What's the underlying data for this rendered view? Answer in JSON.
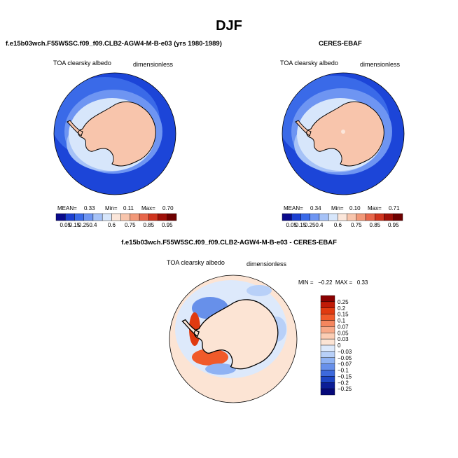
{
  "title": "DJF",
  "panels": [
    {
      "title": "f.e15b03wch.F55W5SC.f09_f09.CLB2-AGW4-M-B-e03 (yrs 1980-1989)",
      "variable": "TOA clearsky albedo",
      "units": "dimensionless",
      "stats": {
        "mean_label": "MEAN=",
        "mean": "0.33",
        "min_label": "Min=",
        "min": "0.11",
        "max_label": "Max=",
        "max": "0.70"
      }
    },
    {
      "title": "CERES-EBAF",
      "variable": "TOA clearsky albedo",
      "units": "dimensionless",
      "stats": {
        "mean_label": "MEAN=",
        "mean": "0.34",
        "min_label": "Min=",
        "min": "0.10",
        "max_label": "Max=",
        "max": "0.71"
      }
    },
    {
      "title": "f.e15b03wch.F55W5SC.f09_f09.CLB2-AGW4-M-B-e03 - CERES-EBAF",
      "variable": "TOA clearsky albedo",
      "units": "dimensionless",
      "stats_text": "MIN =   −0.22  MAX =   0.33"
    }
  ],
  "colorbar_abs": {
    "ticks": [
      "0.05",
      "0.15",
      "0.25",
      "0.4",
      "0.6",
      "0.75",
      "0.85",
      "0.95"
    ],
    "colors": [
      "#0a0a8c",
      "#1c3fd1",
      "#3a6ae8",
      "#6e95f2",
      "#a6c2f7",
      "#d7e6fb",
      "#fbe6da",
      "#f8c5ac",
      "#f29878",
      "#e8664a",
      "#d0341e",
      "#a01008",
      "#6e0000"
    ]
  },
  "colorbar_diff": {
    "ticks": [
      "0.25",
      "0.2",
      "0.15",
      "0.1",
      "0.07",
      "0.05",
      "0.03",
      "0",
      "−0.03",
      "−0.05",
      "−0.07",
      "−0.1",
      "−0.15",
      "−0.2",
      "−0.25"
    ],
    "colors": [
      "#8a0000",
      "#c01a06",
      "#e03a10",
      "#f05a2a",
      "#f5865e",
      "#f8a988",
      "#fbcdb4",
      "#fce4d4",
      "#dde9fb",
      "#b8d0f8",
      "#8fb2f3",
      "#6790ea",
      "#3d69dc",
      "#1d45c4",
      "#0c1d96",
      "#06097a"
    ]
  },
  "chart_data": [
    {
      "type": "heatmap",
      "projection": "south polar stereographic",
      "title": "f.e15b03wch.F55W5SC.f09_f09.CLB2-AGW4-M-B-e03 (yrs 1980-1989)",
      "variable": "TOA clearsky albedo",
      "units": "dimensionless",
      "mean": 0.33,
      "min": 0.11,
      "max": 0.7,
      "colorbar_levels": [
        0.05,
        0.15,
        0.25,
        0.4,
        0.6,
        0.75,
        0.85,
        0.95
      ]
    },
    {
      "type": "heatmap",
      "projection": "south polar stereographic",
      "title": "CERES-EBAF",
      "variable": "TOA clearsky albedo",
      "units": "dimensionless",
      "mean": 0.34,
      "min": 0.1,
      "max": 0.71,
      "colorbar_levels": [
        0.05,
        0.15,
        0.25,
        0.4,
        0.6,
        0.75,
        0.85,
        0.95
      ]
    },
    {
      "type": "heatmap",
      "projection": "south polar stereographic",
      "title": "f.e15b03wch.F55W5SC.f09_f09.CLB2-AGW4-M-B-e03 - CERES-EBAF",
      "variable": "TOA clearsky albedo",
      "units": "dimensionless",
      "min": -0.22,
      "max": 0.33,
      "colorbar_levels": [
        0.25,
        0.2,
        0.15,
        0.1,
        0.07,
        0.05,
        0.03,
        0,
        -0.03,
        -0.05,
        -0.07,
        -0.1,
        -0.15,
        -0.2,
        -0.25
      ]
    }
  ]
}
